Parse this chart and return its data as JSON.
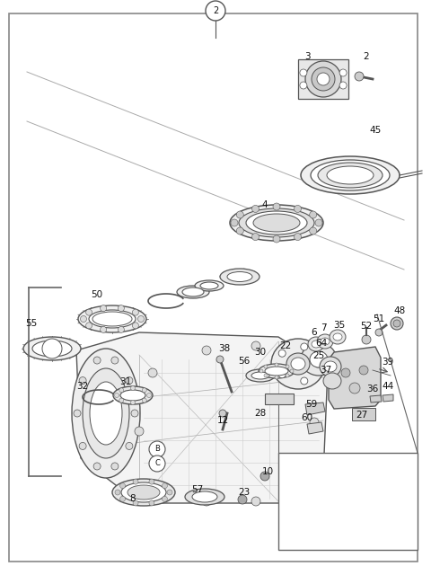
{
  "bg_color": "#ffffff",
  "border_color": "#555555",
  "line_color": "#555555",
  "fig_w": 4.8,
  "fig_h": 6.4,
  "dpi": 100
}
